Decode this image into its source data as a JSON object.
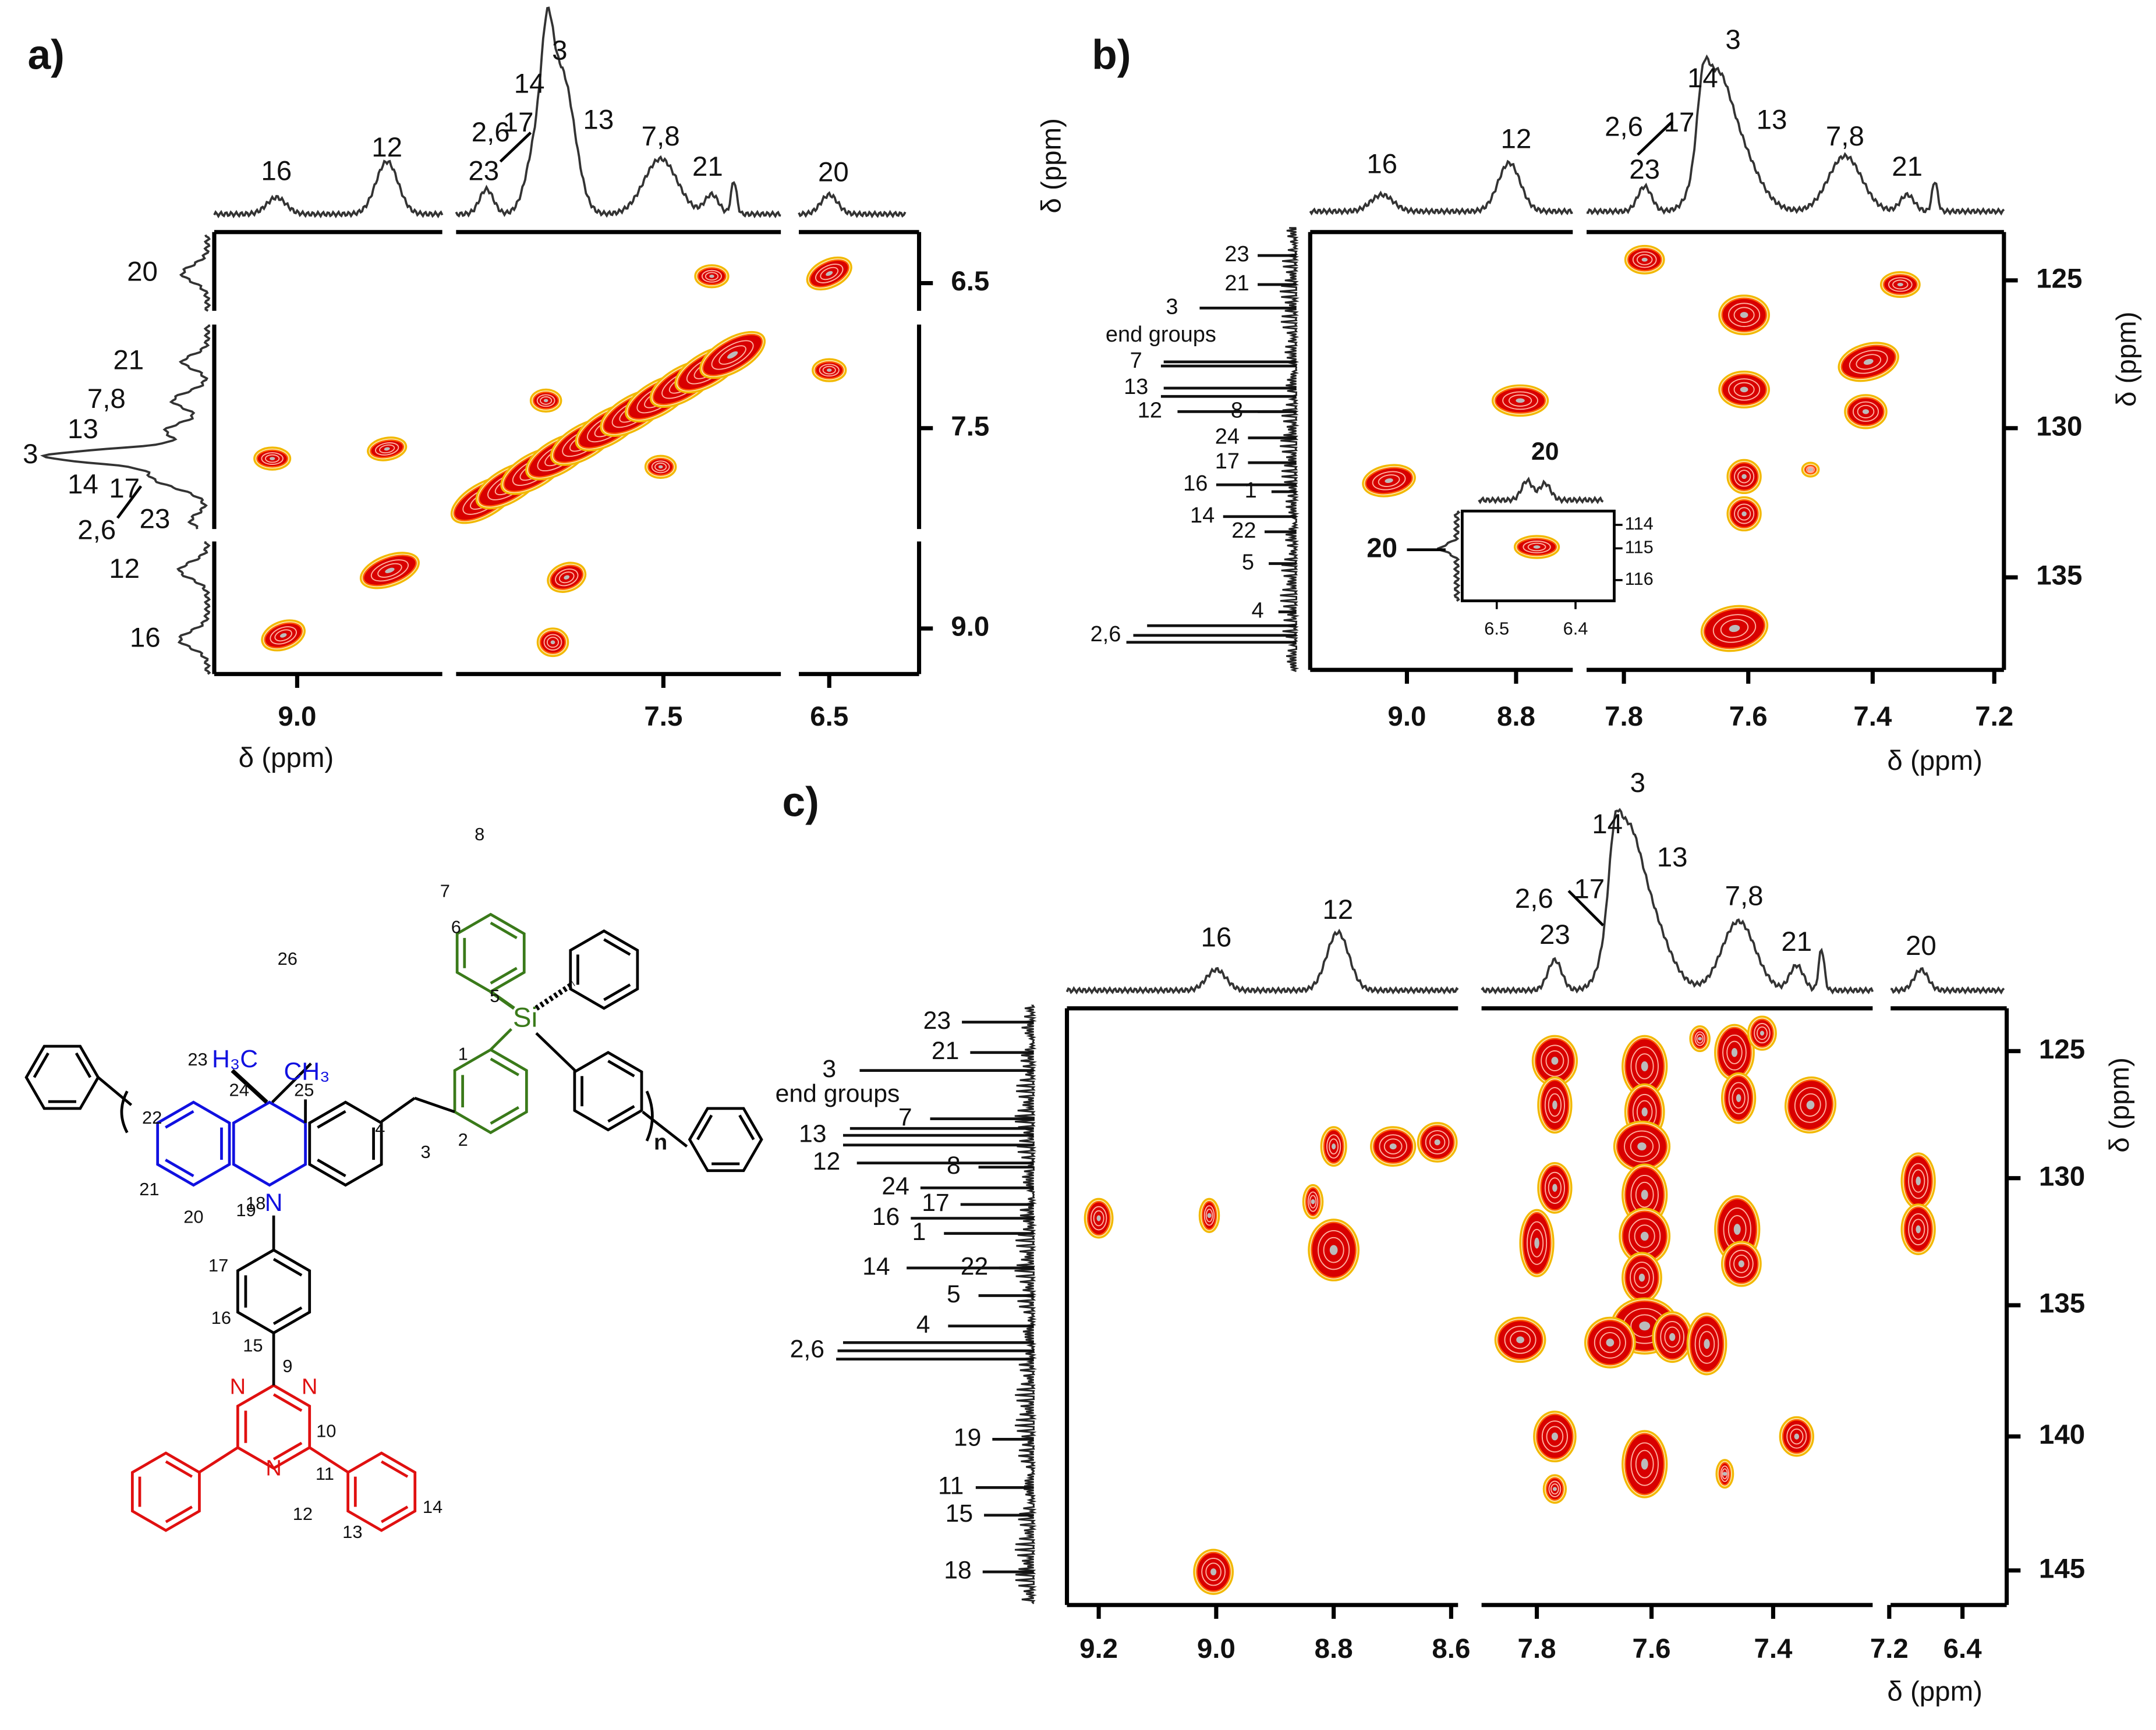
{
  "panels": {
    "a": {
      "label": "a)",
      "x_title": "δ (ppm)",
      "y_title": "δ (ppm)",
      "x_ticks": [
        "9.0",
        "7.5",
        "6.5"
      ],
      "y_ticks": [
        "6.5",
        "7.5",
        "9.0"
      ],
      "top_peaks": [
        "16",
        "12",
        "2,6",
        "17",
        "23",
        "14",
        "3",
        "13",
        "7,8",
        "21",
        "20"
      ],
      "left_peaks": [
        "20",
        "21",
        "7,8",
        "13",
        "3",
        "14",
        "17",
        "2,6",
        "23",
        "12",
        "16"
      ]
    },
    "b": {
      "label": "b)",
      "x_title": "δ (ppm)",
      "y_title": "δ (ppm)",
      "x_ticks": [
        "9.0",
        "8.8",
        "7.8",
        "7.6",
        "7.4",
        "7.2"
      ],
      "y_ticks": [
        "125",
        "130",
        "135"
      ],
      "top_peaks": [
        "16",
        "12",
        "2,6",
        "17",
        "23",
        "14",
        "3",
        "13",
        "7,8",
        "21"
      ],
      "left_peaks": [
        "23",
        "21",
        "3",
        "end groups",
        "7",
        "13",
        "12",
        "8",
        "24",
        "17",
        "16",
        "1",
        "14",
        "22",
        "5",
        "4",
        "2,6"
      ],
      "inset": {
        "top_label": "20",
        "left_label": "20",
        "y_ticks": [
          "114",
          "115",
          "116"
        ],
        "x_ticks": [
          "6.5",
          "6.4"
        ]
      }
    },
    "c": {
      "label": "c)",
      "x_title": "δ (ppm)",
      "y_title": "δ (ppm)",
      "x_ticks": [
        "9.2",
        "9.0",
        "8.8",
        "8.6",
        "7.8",
        "7.6",
        "7.4",
        "7.2",
        "6.4"
      ],
      "y_ticks": [
        "125",
        "130",
        "135",
        "140",
        "145"
      ],
      "top_peaks": [
        "16",
        "12",
        "2,6",
        "17",
        "23",
        "14",
        "3",
        "13",
        "7,8",
        "21",
        "20"
      ],
      "left_peaks": [
        "23",
        "21",
        "3",
        "end groups",
        "7",
        "13",
        "12",
        "8",
        "24",
        "17",
        "16",
        "1",
        "14",
        "22",
        "5",
        "4",
        "2,6",
        "19",
        "11",
        "15",
        "18"
      ]
    }
  },
  "structure": {
    "atom_numbers": [
      "8",
      "7",
      "6",
      "5",
      "26",
      "23",
      "24",
      "25",
      "22",
      "21",
      "20",
      "19",
      "1",
      "2",
      "3",
      "4",
      "18",
      "17",
      "16",
      "15",
      "9",
      "10",
      "11",
      "12",
      "13",
      "14"
    ],
    "methyl_left": "H₃C",
    "methyl_right": "CH₃",
    "silicon": "Si",
    "amine_n": "N",
    "repeat": "n",
    "triazine_n": [
      "N",
      "N",
      "N"
    ]
  }
}
